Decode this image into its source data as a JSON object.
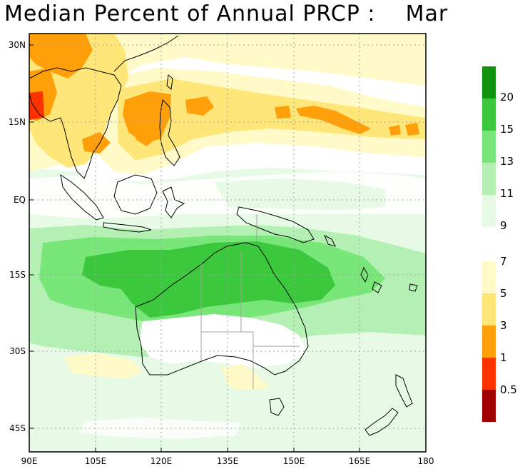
{
  "title": "Median Percent of Annual PRCP :",
  "month": "Mar",
  "lat_ticks": [
    "30N",
    "15N",
    "EQ",
    "15S",
    "30S",
    "45S"
  ],
  "lon_ticks": [
    "90E",
    "105E",
    "120E",
    "135E",
    "150E",
    "165E",
    "180"
  ],
  "colorbar_wet": {
    "labels": [
      "20",
      "15",
      "13",
      "11",
      "9"
    ],
    "colors": [
      "#109410",
      "#3cc83c",
      "#78e678",
      "#b4f0b4",
      "#e6fae6"
    ]
  },
  "colorbar_dry": {
    "labels": [
      "7",
      "5",
      "3",
      "1",
      "0.5"
    ],
    "colors": [
      "#fffac8",
      "#ffe678",
      "#ffa00a",
      "#ff3200",
      "#a00000"
    ]
  },
  "colors": {
    "coast": "#000000",
    "border": "#a0a0a0",
    "grid": "#a0a0a0"
  }
}
